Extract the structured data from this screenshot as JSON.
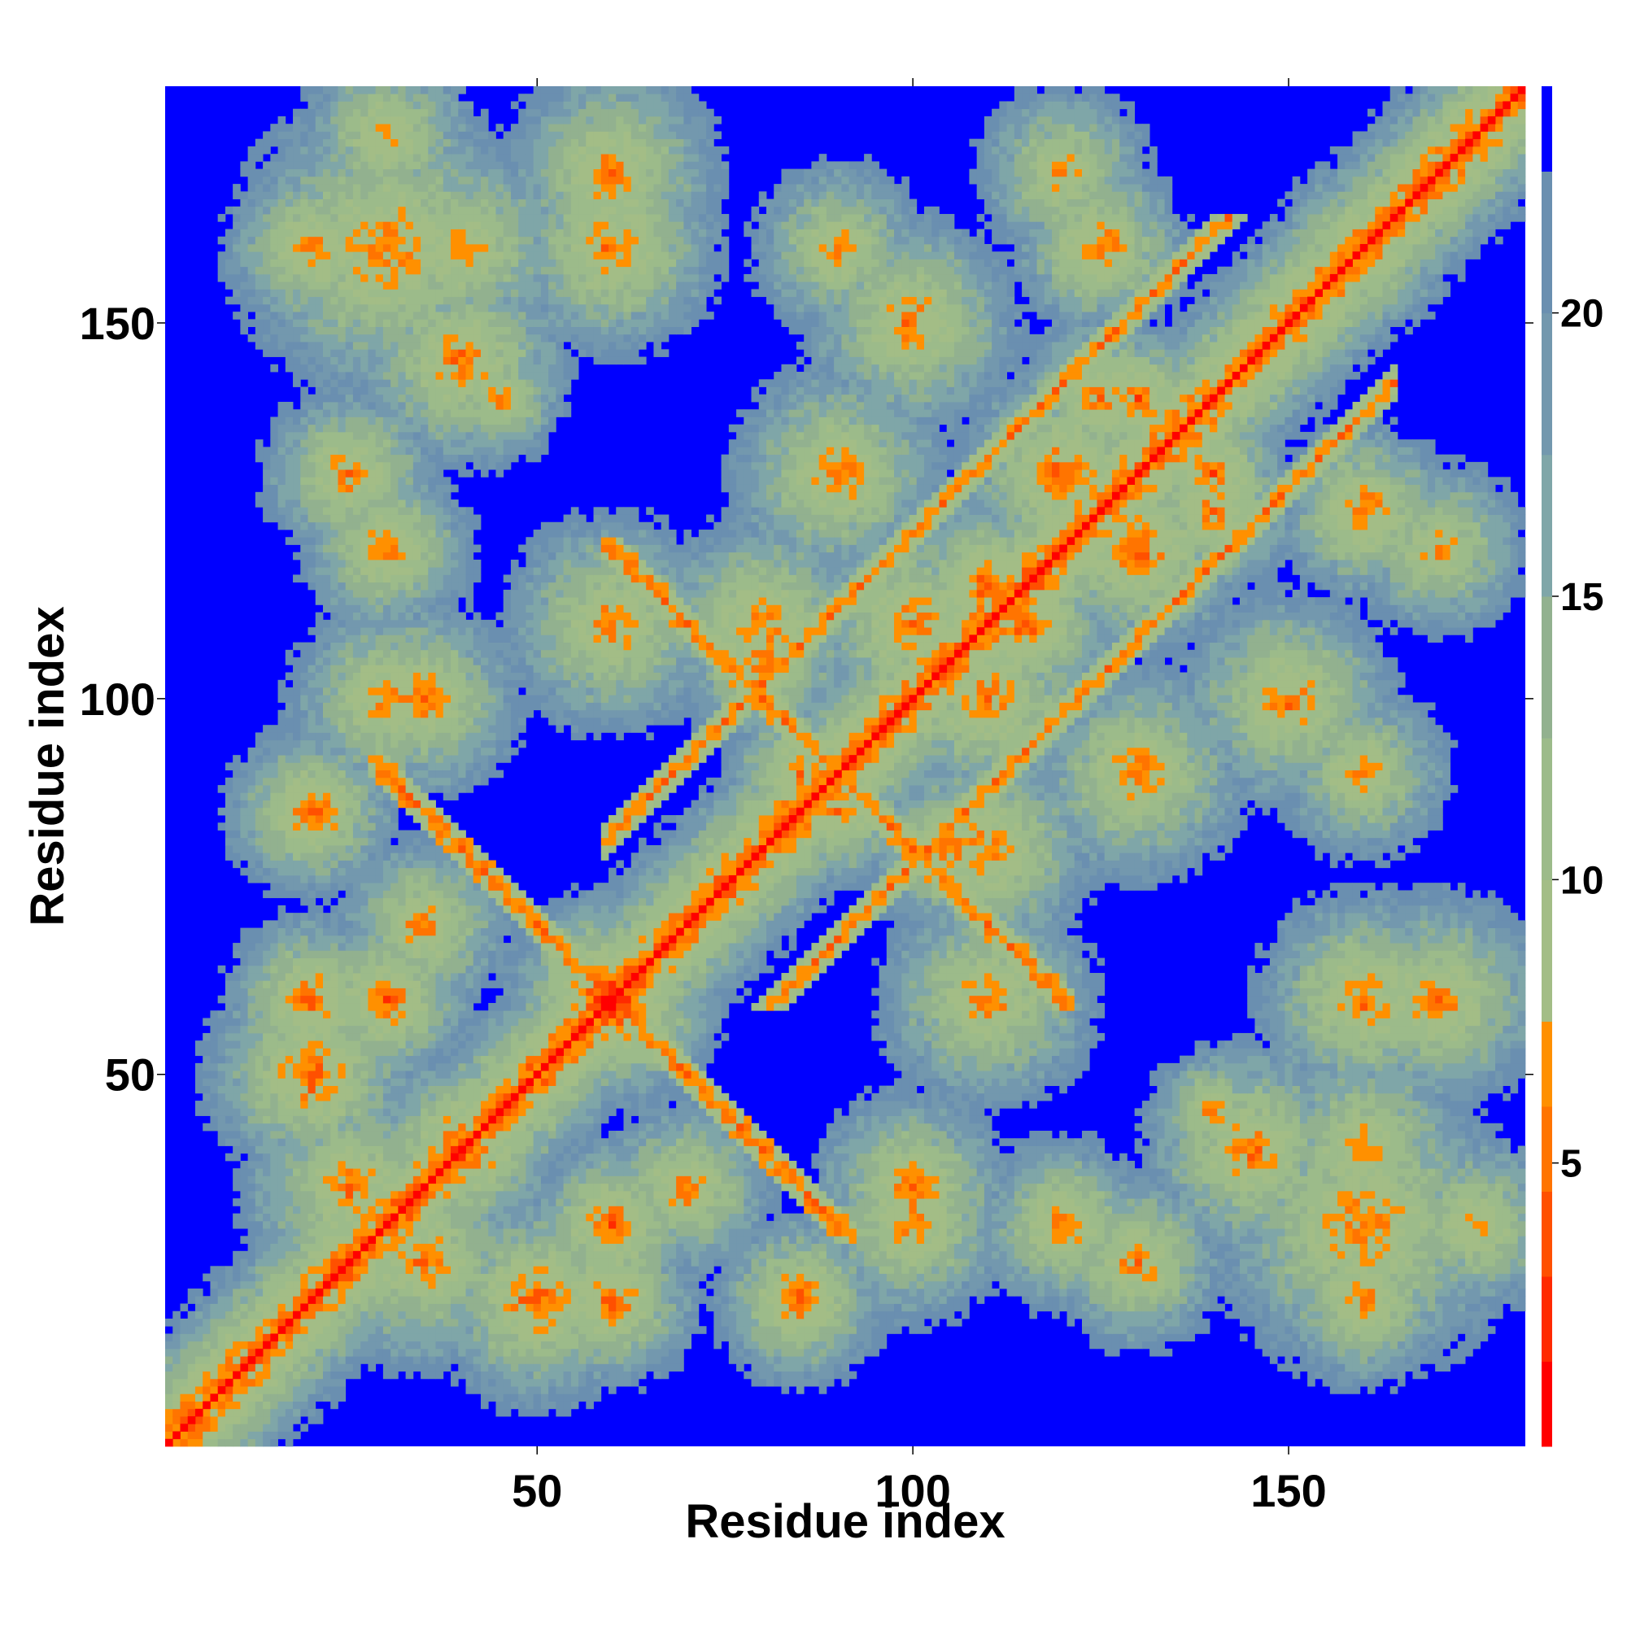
{
  "chart_data": {
    "type": "heatmap",
    "title": "",
    "xlabel": "Residue index",
    "ylabel": "Residue index",
    "n_residues": 181,
    "xlim": [
      0.5,
      181.5
    ],
    "ylim": [
      0.5,
      181.5
    ],
    "x_ticks": [
      50,
      100,
      150
    ],
    "y_ticks": [
      50,
      100,
      150
    ],
    "colorbar": {
      "range": [
        0,
        24
      ],
      "ticks": [
        5,
        10,
        15,
        20
      ],
      "bands": [
        {
          "from": 0,
          "to": 1.5,
          "color": "#ff0000"
        },
        {
          "from": 1.5,
          "to": 3,
          "color": "#ff2a00"
        },
        {
          "from": 3,
          "to": 4.5,
          "color": "#ff5000"
        },
        {
          "from": 4.5,
          "to": 6,
          "color": "#ff7400"
        },
        {
          "from": 6,
          "to": 7.5,
          "color": "#ff9000"
        },
        {
          "from": 7.5,
          "to": 10,
          "color": "#a3bd86"
        },
        {
          "from": 10,
          "to": 12.5,
          "color": "#9cbb8a"
        },
        {
          "from": 12.5,
          "to": 15,
          "color": "#92b18f"
        },
        {
          "from": 15,
          "to": 17.5,
          "color": "#7fa6a8"
        },
        {
          "from": 17.5,
          "to": 20,
          "color": "#7398ae"
        },
        {
          "from": 20,
          "to": 22.5,
          "color": "#6a8fb0"
        },
        {
          "from": 22.5,
          "to": 24,
          "color": "#0000ff"
        }
      ]
    },
    "background_color": "#0000ff",
    "contact_rule": "cells with distance >= 22.5 are drawn in background blue; matrix is symmetric about the diagonal",
    "features": [
      {
        "kind": "diagonal",
        "description": "continuous red/orange band along the main diagonal from residue 1 to 181"
      },
      {
        "kind": "anti-parallel contact",
        "region": "residues ~47-70 x ~47-70",
        "description": "orange anti-diagonal streak crossing the diagonal near residue 60"
      },
      {
        "kind": "parallel contact",
        "region": "residues ~88-130 x ~110-160",
        "description": "orange streaks parallel to the diagonal"
      },
      {
        "kind": "domain blocks",
        "region": "residues ~150-181 x ~10-75",
        "description": "dense green/grey blocks with scattered orange contacts"
      }
    ]
  }
}
